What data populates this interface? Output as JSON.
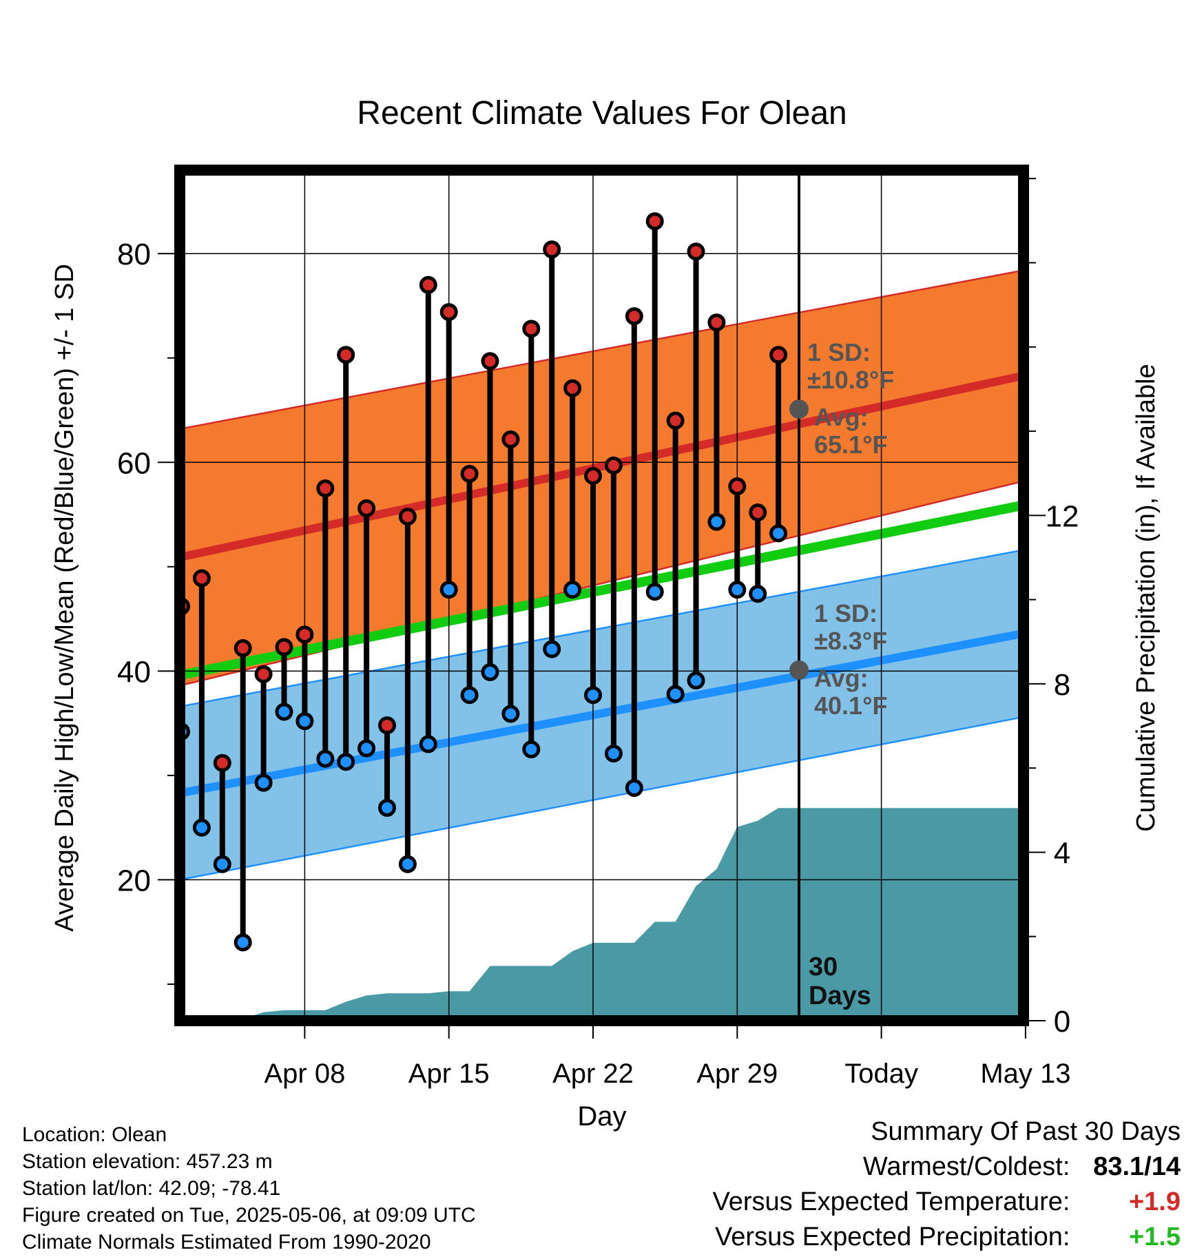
{
  "chart_data": {
    "type": "line",
    "title": "Recent Climate Values For Olean",
    "xlabel": "Day",
    "ylabel": "Average Daily High/Low/Mean (Red/Blue/Green) +/- 1 SD",
    "y2label": "Cumulative Precipitation (in), If Available",
    "x_tick_labels": [
      "Apr 08",
      "Apr 15",
      "Apr 22",
      "Apr 29",
      "Today",
      "May 13"
    ],
    "y_ticks": [
      20,
      40,
      60,
      80
    ],
    "y2_ticks": [
      0,
      4,
      8,
      12
    ],
    "ylim": [
      6.5,
      88
    ],
    "y2lim": [
      0,
      20.2
    ],
    "grid": true,
    "today_marker_label": "30 Days",
    "daily_high": [
      46.2,
      48.9,
      31.2,
      42.2,
      39.7,
      42.3,
      43.5,
      57.5,
      70.3,
      55.6,
      34.8,
      54.8,
      77.0,
      74.4,
      58.9,
      69.7,
      62.2,
      72.8,
      80.4,
      67.1,
      58.7,
      59.7,
      74.0,
      83.1,
      64.0,
      80.2,
      73.4,
      57.7,
      55.2,
      70.3
    ],
    "daily_low": [
      34.2,
      25.0,
      21.5,
      14.0,
      29.3,
      36.1,
      35.2,
      31.6,
      31.3,
      32.6,
      26.9,
      21.5,
      33.0,
      47.8,
      37.7,
      39.9,
      35.9,
      32.5,
      42.1,
      47.8,
      37.7,
      32.1,
      28.8,
      47.6,
      37.8,
      39.1,
      54.3,
      47.8,
      47.4,
      53.2
    ],
    "normal_high": {
      "start": 50.9,
      "end": 68.3,
      "sd_start": 12.3,
      "sd_end": 10.1
    },
    "normal_low": {
      "start": 28.3,
      "end": 43.6,
      "sd_start": 8.3,
      "sd_end": 8.0
    },
    "normal_mean": {
      "start": 39.6,
      "end": 55.9
    },
    "cumulative_precip": [
      0,
      0,
      0,
      0.05,
      0.2,
      0.25,
      0.25,
      0.25,
      0.45,
      0.6,
      0.65,
      0.65,
      0.65,
      0.7,
      0.7,
      1.3,
      1.3,
      1.3,
      1.3,
      1.65,
      1.85,
      1.85,
      1.85,
      2.35,
      2.35,
      3.2,
      3.6,
      4.6,
      4.75,
      5.05,
      5.05
    ],
    "today_annotation": {
      "high_sd": "1 SD:",
      "high_sd_value": "±10.8°F",
      "high_avg": "Avg:",
      "high_avg_value": "65.1°F",
      "high_value": 65.1,
      "low_sd": "1 SD:",
      "low_sd_value": "±8.3°F",
      "low_avg": "Avg:",
      "low_avg_value": "40.1°F",
      "low_value": 40.1
    }
  },
  "meta": {
    "location": "Location: Olean",
    "elevation": "Station elevation: 457.23 m",
    "latlon": "Station lat/lon: 42.09; -78.41",
    "created": "Figure created on Tue, 2025-05-06, at 09:09 UTC",
    "normals": "Climate Normals Estimated From 1990-2020"
  },
  "summary": {
    "title": "Summary Of Past 30 Days",
    "warmest_label": "Warmest/Coldest:",
    "warmest_value": "83.1/14",
    "temp_label": "Versus Expected Temperature:",
    "temp_value": "+1.9",
    "precip_label": "Versus Expected Precipitation:",
    "precip_value": "+1.5",
    "colors": {
      "temp": "#d42a28",
      "precip": "#22bb22"
    }
  }
}
